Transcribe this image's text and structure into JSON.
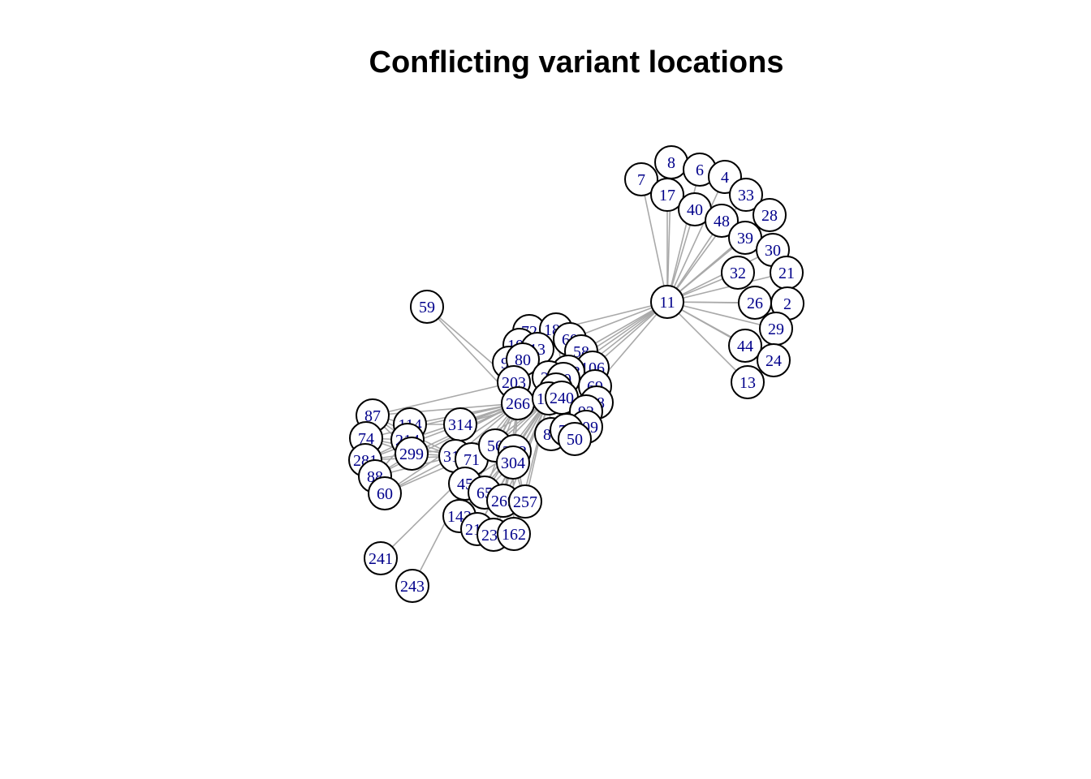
{
  "title": "Conflicting variant locations",
  "style": {
    "edge_color": "#a9a9a9",
    "node_fill": "#ffffff",
    "node_stroke": "#000000",
    "label_color": "#00008b",
    "background": "#ffffff"
  },
  "nodes": [
    "11",
    "7",
    "8",
    "6",
    "4",
    "17",
    "40",
    "48",
    "33",
    "28",
    "39",
    "30",
    "21",
    "32",
    "26",
    "2",
    "29",
    "44",
    "24",
    "13",
    "59",
    "72",
    "183",
    "60b",
    "100",
    "13b",
    "58",
    "94",
    "80",
    "106",
    "203",
    "223",
    "27",
    "10",
    "69",
    "200",
    "266",
    "134",
    "240",
    "68",
    "92",
    "109",
    "81",
    "175",
    "50",
    "87",
    "114",
    "74",
    "214",
    "281",
    "299",
    "88",
    "60",
    "314",
    "313",
    "71",
    "56",
    "312",
    "304",
    "45",
    "65",
    "269",
    "257",
    "143",
    "213",
    "231",
    "162",
    "241",
    "243"
  ],
  "node_labels": {
    "11": "11",
    "7": "7",
    "8": "8",
    "6": "6",
    "4": "4",
    "17": "17",
    "40": "40",
    "48": "48",
    "33": "33",
    "28": "28",
    "39": "39",
    "30": "30",
    "21": "21",
    "32": "32",
    "26": "26",
    "2": "2",
    "29": "29",
    "44": "44",
    "24": "24",
    "13": "13",
    "59": "59",
    "72": "72",
    "183": "183",
    "60b": "60",
    "100": "100",
    "13b": "13",
    "58": "58",
    "94": "94",
    "80": "80",
    "106": "106",
    "203": "203",
    "223": "223",
    "27": "27",
    "10": "10",
    "69": "69",
    "200": "200",
    "266": "266",
    "134": "134",
    "240": "240",
    "68": "68",
    "92": "92",
    "109": "109",
    "81": "81",
    "175": "75",
    "50": "50",
    "87": "87",
    "114": "114",
    "74": "74",
    "214": "214",
    "281": "281",
    "299": "299",
    "88": "88",
    "60": "60",
    "314": "314",
    "313": "313",
    "71": "71",
    "56": "56",
    "312": "312",
    "304": "304",
    "45": "45",
    "65": "65",
    "269": "269",
    "257": "257",
    "143": "143",
    "213": "213",
    "231": "231",
    "162": "162",
    "241": "241",
    "243": "243"
  },
  "edges": [
    [
      "11",
      "7"
    ],
    [
      "11",
      "8"
    ],
    [
      "11",
      "6"
    ],
    [
      "11",
      "4"
    ],
    [
      "11",
      "17"
    ],
    [
      "11",
      "40"
    ],
    [
      "11",
      "48"
    ],
    [
      "11",
      "33"
    ],
    [
      "11",
      "28"
    ],
    [
      "11",
      "39"
    ],
    [
      "11",
      "30"
    ],
    [
      "11",
      "21"
    ],
    [
      "11",
      "32"
    ],
    [
      "11",
      "26"
    ],
    [
      "11",
      "2"
    ],
    [
      "11",
      "29"
    ],
    [
      "11",
      "44"
    ],
    [
      "11",
      "24"
    ],
    [
      "11",
      "13"
    ],
    [
      "11",
      "58"
    ],
    [
      "11",
      "106"
    ],
    [
      "11",
      "223"
    ],
    [
      "11",
      "69"
    ],
    [
      "11",
      "183"
    ],
    [
      "11",
      "60b"
    ],
    [
      "11",
      "27"
    ],
    [
      "11",
      "200"
    ],
    [
      "59",
      "203"
    ],
    [
      "59",
      "266"
    ],
    [
      "87",
      "266"
    ],
    [
      "87",
      "203"
    ],
    [
      "87",
      "313"
    ],
    [
      "87",
      "299"
    ],
    [
      "87",
      "114"
    ],
    [
      "87",
      "214"
    ],
    [
      "114",
      "266"
    ],
    [
      "114",
      "314"
    ],
    [
      "114",
      "299"
    ],
    [
      "74",
      "214"
    ],
    [
      "74",
      "266"
    ],
    [
      "74",
      "313"
    ],
    [
      "74",
      "299"
    ],
    [
      "281",
      "214"
    ],
    [
      "281",
      "299"
    ],
    [
      "281",
      "313"
    ],
    [
      "281",
      "266"
    ],
    [
      "88",
      "299"
    ],
    [
      "88",
      "214"
    ],
    [
      "88",
      "313"
    ],
    [
      "88",
      "266"
    ],
    [
      "60",
      "313"
    ],
    [
      "60",
      "266"
    ],
    [
      "60",
      "56"
    ],
    [
      "214",
      "266"
    ],
    [
      "214",
      "313"
    ],
    [
      "299",
      "266"
    ],
    [
      "299",
      "313"
    ],
    [
      "299",
      "56"
    ],
    [
      "314",
      "266"
    ],
    [
      "314",
      "200"
    ],
    [
      "314",
      "134"
    ],
    [
      "313",
      "266"
    ],
    [
      "313",
      "134"
    ],
    [
      "313",
      "56"
    ],
    [
      "71",
      "266"
    ],
    [
      "71",
      "134"
    ],
    [
      "56",
      "266"
    ],
    [
      "56",
      "134"
    ],
    [
      "312",
      "134"
    ],
    [
      "312",
      "266"
    ],
    [
      "304",
      "134"
    ],
    [
      "304",
      "266"
    ],
    [
      "45",
      "266"
    ],
    [
      "45",
      "134"
    ],
    [
      "45",
      "312"
    ],
    [
      "65",
      "266"
    ],
    [
      "65",
      "134"
    ],
    [
      "65",
      "304"
    ],
    [
      "269",
      "134"
    ],
    [
      "269",
      "266"
    ],
    [
      "269",
      "312"
    ],
    [
      "257",
      "134"
    ],
    [
      "257",
      "312"
    ],
    [
      "257",
      "304"
    ],
    [
      "143",
      "266"
    ],
    [
      "143",
      "134"
    ],
    [
      "143",
      "312"
    ],
    [
      "213",
      "134"
    ],
    [
      "213",
      "304"
    ],
    [
      "231",
      "134"
    ],
    [
      "231",
      "312"
    ],
    [
      "162",
      "134"
    ],
    [
      "162",
      "304"
    ],
    [
      "241",
      "56"
    ],
    [
      "243",
      "45"
    ],
    [
      "81",
      "134"
    ],
    [
      "175",
      "200"
    ],
    [
      "50",
      "200"
    ],
    [
      "92",
      "200"
    ],
    [
      "109",
      "200"
    ],
    [
      "68",
      "200"
    ],
    [
      "94",
      "203"
    ],
    [
      "80",
      "203"
    ],
    [
      "100",
      "203"
    ],
    [
      "13b",
      "27"
    ],
    [
      "72",
      "27"
    ],
    [
      "183",
      "10"
    ],
    [
      "60b",
      "10"
    ]
  ]
}
